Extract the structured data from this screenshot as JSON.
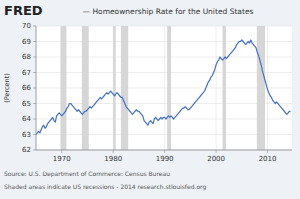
{
  "chart_data": {
    "type": "line",
    "title": "— Homeownership Rate for the United States",
    "ylabel": "(Percent)",
    "annotations": [
      "FRED",
      "Source: U.S. Department of Commerce: Census Bureau",
      "Shaded areas indicate US recessions - 2014 research.stlouisfed.org"
    ],
    "color": "#4472C4",
    "grid": true,
    "xlim": [
      1965.0,
      2014.75
    ],
    "ylim": [
      62,
      70
    ],
    "xticks": [
      1970,
      1980,
      1990,
      2000,
      2010
    ],
    "yticks": [
      62,
      63,
      64,
      65,
      66,
      67,
      68,
      69,
      70
    ],
    "recessions": [
      [
        1969.75,
        1970.917
      ],
      [
        1973.917,
        1975.25
      ],
      [
        1980.0,
        1980.5
      ],
      [
        1981.5,
        1982.917
      ],
      [
        1990.5,
        1991.25
      ],
      [
        2001.25,
        2001.917
      ],
      [
        2007.917,
        2009.5
      ]
    ],
    "x": [
      1965.0,
      1965.25,
      1965.5,
      1965.75,
      1966.0,
      1966.25,
      1966.5,
      1966.75,
      1967.0,
      1967.25,
      1967.5,
      1967.75,
      1968.0,
      1968.25,
      1968.5,
      1968.75,
      1969.0,
      1969.25,
      1969.5,
      1969.75,
      1970.0,
      1970.25,
      1970.5,
      1970.75,
      1971.0,
      1971.25,
      1971.5,
      1971.75,
      1972.0,
      1972.25,
      1972.5,
      1972.75,
      1973.0,
      1973.25,
      1973.5,
      1973.75,
      1974.0,
      1974.25,
      1974.5,
      1974.75,
      1975.0,
      1975.25,
      1975.5,
      1975.75,
      1976.0,
      1976.25,
      1976.5,
      1976.75,
      1977.0,
      1977.25,
      1977.5,
      1977.75,
      1978.0,
      1978.25,
      1978.5,
      1978.75,
      1979.0,
      1979.25,
      1979.5,
      1979.75,
      1980.0,
      1980.25,
      1980.5,
      1980.75,
      1981.0,
      1981.25,
      1981.5,
      1981.75,
      1982.0,
      1982.25,
      1982.5,
      1982.75,
      1983.0,
      1983.25,
      1983.5,
      1983.75,
      1984.0,
      1984.25,
      1984.5,
      1984.75,
      1985.0,
      1985.25,
      1985.5,
      1985.75,
      1986.0,
      1986.25,
      1986.5,
      1986.75,
      1987.0,
      1987.25,
      1987.5,
      1987.75,
      1988.0,
      1988.25,
      1988.5,
      1988.75,
      1989.0,
      1989.25,
      1989.5,
      1989.75,
      1990.0,
      1990.25,
      1990.5,
      1990.75,
      1991.0,
      1991.25,
      1991.5,
      1991.75,
      1992.0,
      1992.25,
      1992.5,
      1992.75,
      1993.0,
      1993.25,
      1993.5,
      1993.75,
      1994.0,
      1994.25,
      1994.5,
      1994.75,
      1995.0,
      1995.25,
      1995.5,
      1995.75,
      1996.0,
      1996.25,
      1996.5,
      1996.75,
      1997.0,
      1997.25,
      1997.5,
      1997.75,
      1998.0,
      1998.25,
      1998.5,
      1998.75,
      1999.0,
      1999.25,
      1999.5,
      1999.75,
      2000.0,
      2000.25,
      2000.5,
      2000.75,
      2001.0,
      2001.25,
      2001.5,
      2001.75,
      2002.0,
      2002.25,
      2002.5,
      2002.75,
      2003.0,
      2003.25,
      2003.5,
      2003.75,
      2004.0,
      2004.25,
      2004.5,
      2004.75,
      2005.0,
      2005.25,
      2005.5,
      2005.75,
      2006.0,
      2006.25,
      2006.5,
      2006.75,
      2007.0,
      2007.25,
      2007.5,
      2007.75,
      2008.0,
      2008.25,
      2008.5,
      2008.75,
      2009.0,
      2009.25,
      2009.5,
      2009.75,
      2010.0,
      2010.25,
      2010.5,
      2010.75,
      2011.0,
      2011.25,
      2011.5,
      2011.75,
      2012.0,
      2012.25,
      2012.5,
      2012.75,
      2013.0,
      2013.25,
      2013.5,
      2013.75,
      2014.0,
      2014.25,
      2014.5
    ],
    "values": [
      63.0,
      63.1,
      63.2,
      63.1,
      63.3,
      63.5,
      63.6,
      63.4,
      63.5,
      63.7,
      63.8,
      63.9,
      64.0,
      64.1,
      63.9,
      63.8,
      64.2,
      64.3,
      64.4,
      64.3,
      64.2,
      64.3,
      64.4,
      64.5,
      64.7,
      64.8,
      65.0,
      65.0,
      64.9,
      64.8,
      64.7,
      64.6,
      64.5,
      64.6,
      64.5,
      64.4,
      64.3,
      64.4,
      64.5,
      64.5,
      64.6,
      64.7,
      64.8,
      64.7,
      64.8,
      64.9,
      65.0,
      65.1,
      65.2,
      65.3,
      65.4,
      65.3,
      65.4,
      65.5,
      65.6,
      65.7,
      65.6,
      65.7,
      65.8,
      65.7,
      65.6,
      65.5,
      65.6,
      65.7,
      65.6,
      65.5,
      65.4,
      65.4,
      65.2,
      65.0,
      64.8,
      64.7,
      64.6,
      64.5,
      64.4,
      64.3,
      64.4,
      64.5,
      64.6,
      64.5,
      64.5,
      64.4,
      64.3,
      64.2,
      63.9,
      63.8,
      63.7,
      63.6,
      63.8,
      63.9,
      63.8,
      63.7,
      64.0,
      64.1,
      64.0,
      63.9,
      64.0,
      64.1,
      64.0,
      64.1,
      64.1,
      64.0,
      64.1,
      64.2,
      64.1,
      64.2,
      64.1,
      64.0,
      64.1,
      64.2,
      64.3,
      64.4,
      64.5,
      64.6,
      64.7,
      64.7,
      64.8,
      64.7,
      64.6,
      64.6,
      64.7,
      64.8,
      64.9,
      65.0,
      65.1,
      65.2,
      65.3,
      65.4,
      65.5,
      65.6,
      65.7,
      65.8,
      66.0,
      66.2,
      66.4,
      66.5,
      66.7,
      66.8,
      67.0,
      67.2,
      67.5,
      67.7,
      67.8,
      68.0,
      67.9,
      67.8,
      67.9,
      68.0,
      67.9,
      68.0,
      68.1,
      68.2,
      68.3,
      68.4,
      68.5,
      68.6,
      68.8,
      68.9,
      69.0,
      69.0,
      69.1,
      69.0,
      68.9,
      68.8,
      68.9,
      69.0,
      68.9,
      69.1,
      68.9,
      68.8,
      68.7,
      68.6,
      68.3,
      68.1,
      67.8,
      67.5,
      67.1,
      66.8,
      66.5,
      66.2,
      65.9,
      65.7,
      65.5,
      65.4,
      65.2,
      65.1,
      65.0,
      65.1,
      65.0,
      64.9,
      64.8,
      64.7,
      64.6,
      64.5,
      64.4,
      64.3,
      64.4,
      64.5,
      64.5
    ]
  }
}
